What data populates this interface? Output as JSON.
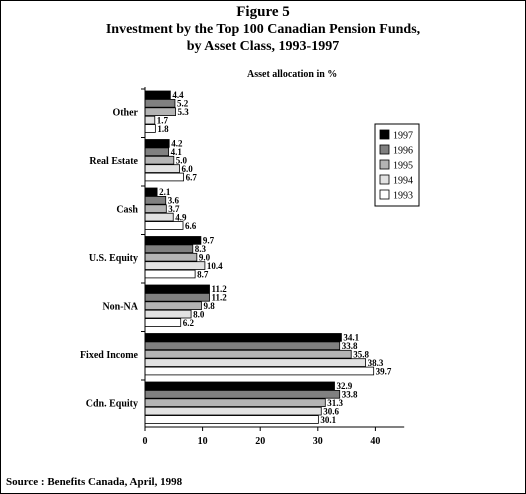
{
  "figure_label": "Figure 5",
  "title_line1": "Investment by the Top 100 Canadian Pension Funds,",
  "title_line2": "by Asset Class, 1993-1997",
  "caption": "Asset allocation in %",
  "source": "Source : Benefits Canada, April, 1998",
  "chart_data": {
    "type": "bar",
    "orientation": "horizontal",
    "categories": [
      "Other",
      "Real Estate",
      "Cash",
      "U.S. Equity",
      "Non-NA",
      "Fixed Income",
      "Cdn. Equity"
    ],
    "series": [
      {
        "name": "1997",
        "color": "#000000",
        "values": [
          4.4,
          4.2,
          2.1,
          9.7,
          11.2,
          34.1,
          32.9
        ],
        "labels": [
          "4.4",
          "4.2",
          "2.1",
          "9.7",
          "11.2",
          "34.1",
          "32.9"
        ]
      },
      {
        "name": "1996",
        "color": "#808080",
        "values": [
          5.2,
          4.1,
          3.6,
          8.3,
          11.2,
          33.8,
          33.8
        ],
        "labels": [
          "5.2",
          "4.1",
          "3.6",
          "8.3",
          "11.2",
          "33.8",
          "33.8"
        ]
      },
      {
        "name": "1995",
        "color": "#b4b4b4",
        "values": [
          5.3,
          5.0,
          3.7,
          9.0,
          9.8,
          35.8,
          31.3
        ],
        "labels": [
          "5.3",
          "5.0",
          "3.7",
          "9.0",
          "9.8",
          "35.8",
          "31.3"
        ]
      },
      {
        "name": "1994",
        "color": "#e2e2e2",
        "values": [
          1.7,
          6.0,
          4.9,
          10.4,
          8.0,
          38.3,
          30.6
        ],
        "labels": [
          "1.7",
          "6.0",
          "4.9",
          "10.4",
          "8.0",
          "38.3",
          "30.6"
        ]
      },
      {
        "name": "1993",
        "color": "#ffffff",
        "values": [
          1.8,
          6.7,
          6.6,
          8.7,
          6.2,
          39.7,
          30.1
        ],
        "labels": [
          "1.8",
          "6.7",
          "6.6",
          "8.7",
          "6.2",
          "39.7",
          "30.1"
        ]
      }
    ],
    "xlim": [
      0,
      45
    ],
    "xticks": [
      0,
      10,
      20,
      30,
      40
    ],
    "xlabel": "",
    "ylabel": "",
    "grid": false,
    "legend_position": "right"
  }
}
